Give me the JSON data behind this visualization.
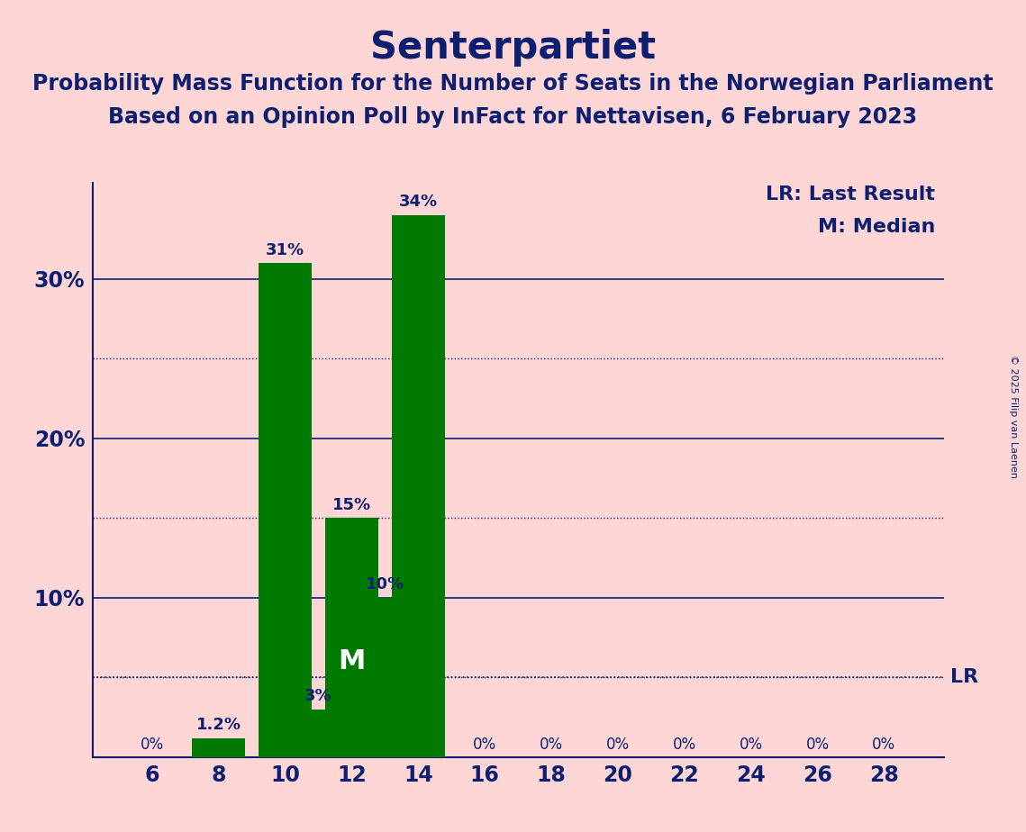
{
  "title": "Senterpartiet",
  "subtitle1": "Probability Mass Function for the Number of Seats in the Norwegian Parliament",
  "subtitle2": "Based on an Opinion Poll by InFact for Nettavisen, 6 February 2023",
  "copyright": "© 2025 Filip van Laenen",
  "legend_lr": "LR: Last Result",
  "legend_m": "M: Median",
  "seats": [
    6,
    8,
    10,
    11,
    12,
    13,
    14,
    16,
    18,
    20,
    22,
    24,
    26,
    28
  ],
  "values": [
    0.0,
    1.2,
    31.0,
    3.0,
    15.0,
    10.0,
    34.0,
    0.0,
    0.0,
    0.0,
    0.0,
    0.0,
    0.0,
    0.0
  ],
  "bar_width": 1.6,
  "bar_color": "#007A00",
  "bg_color": "#FFD6D6",
  "text_color": "#0D1F6E",
  "axis_color": "#0D1F6E",
  "solid_gridline_color": "#0D1F6E",
  "dotted_gridline_color": "#0D1F6E",
  "lr_value": 5.0,
  "median_seat": 12,
  "xlabel_seats": [
    6,
    8,
    10,
    12,
    14,
    16,
    18,
    20,
    22,
    24,
    26,
    28
  ],
  "yticks_solid": [
    10,
    20,
    30
  ],
  "yticks_dotted": [
    5,
    15,
    25
  ],
  "ylim": [
    0,
    36
  ],
  "title_fontsize": 30,
  "subtitle_fontsize": 17,
  "bar_label_fontsize": 13,
  "axis_tick_fontsize": 17,
  "legend_fontsize": 16,
  "lr_fontsize": 16,
  "median_label_fontsize": 22,
  "copyright_fontsize": 8
}
